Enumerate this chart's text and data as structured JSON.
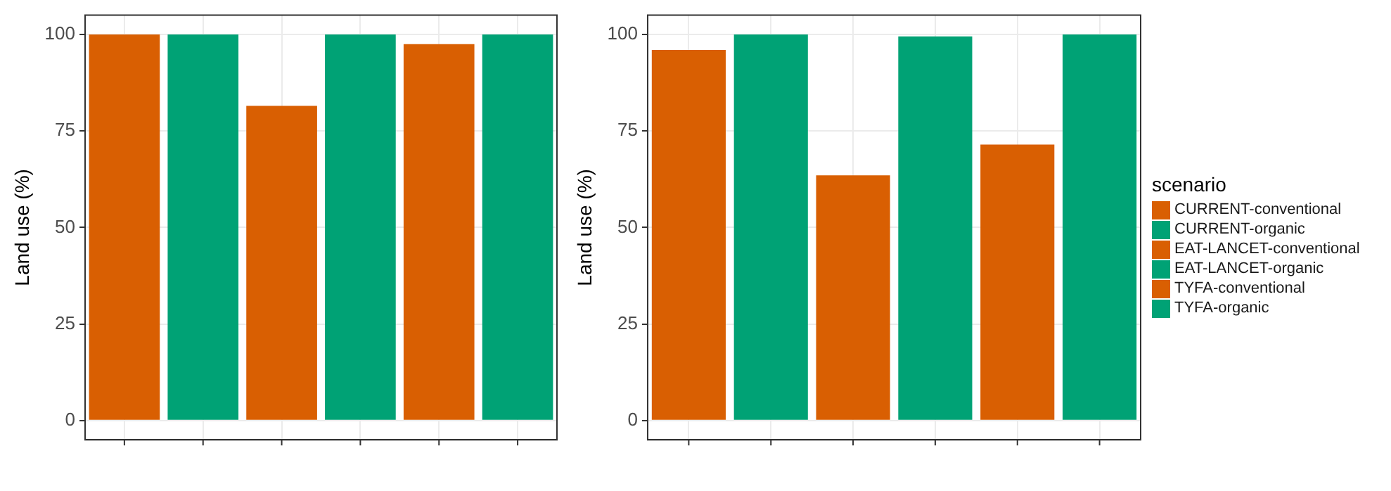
{
  "chart_data": [
    {
      "type": "bar",
      "ylabel": "Land use (%)",
      "categories": [
        null,
        null,
        null,
        null,
        null,
        null
      ],
      "ylim": [
        -5,
        105
      ],
      "yticks": [
        0,
        25,
        50,
        75,
        100
      ],
      "grid": true,
      "legend": false,
      "series": [
        {
          "color": "#d95f02",
          "values": [
            100,
            null,
            null,
            null,
            null,
            null
          ]
        },
        {
          "color": "#00a275",
          "values": [
            null,
            100,
            null,
            null,
            null,
            null
          ]
        },
        {
          "color": "#d95f02",
          "values": [
            null,
            null,
            81.5,
            null,
            null,
            null
          ]
        },
        {
          "color": "#00a275",
          "values": [
            null,
            null,
            null,
            100,
            null,
            null
          ]
        },
        {
          "color": "#d95f02",
          "values": [
            null,
            null,
            null,
            null,
            97.5,
            null
          ]
        },
        {
          "color": "#00a275",
          "values": [
            null,
            null,
            null,
            null,
            null,
            100
          ]
        }
      ]
    },
    {
      "type": "bar",
      "ylabel": "Land use (%)",
      "legend_title": "scenario",
      "categories": [
        null,
        null,
        null,
        null,
        null,
        null
      ],
      "ylim": [
        -5,
        105
      ],
      "yticks": [
        0,
        25,
        50,
        75,
        100
      ],
      "grid": true,
      "legend": "right",
      "series": [
        {
          "name": "CURRENT-conventional",
          "color": "#d95f02",
          "values": [
            96,
            null,
            null,
            null,
            null,
            null
          ]
        },
        {
          "name": "CURRENT-organic",
          "color": "#00a275",
          "values": [
            null,
            100,
            null,
            null,
            null,
            null
          ]
        },
        {
          "name": "EAT-LANCET-conventional",
          "color": "#d95f02",
          "values": [
            null,
            null,
            63.5,
            null,
            null,
            null
          ]
        },
        {
          "name": "EAT-LANCET-organic",
          "color": "#00a275",
          "values": [
            null,
            null,
            null,
            99.5,
            null,
            null
          ]
        },
        {
          "name": "TYFA-conventional",
          "color": "#d95f02",
          "values": [
            null,
            null,
            null,
            null,
            71.5,
            null
          ]
        },
        {
          "name": "TYFA-organic",
          "color": "#00a275",
          "values": [
            null,
            null,
            null,
            null,
            null,
            100
          ]
        }
      ]
    }
  ]
}
